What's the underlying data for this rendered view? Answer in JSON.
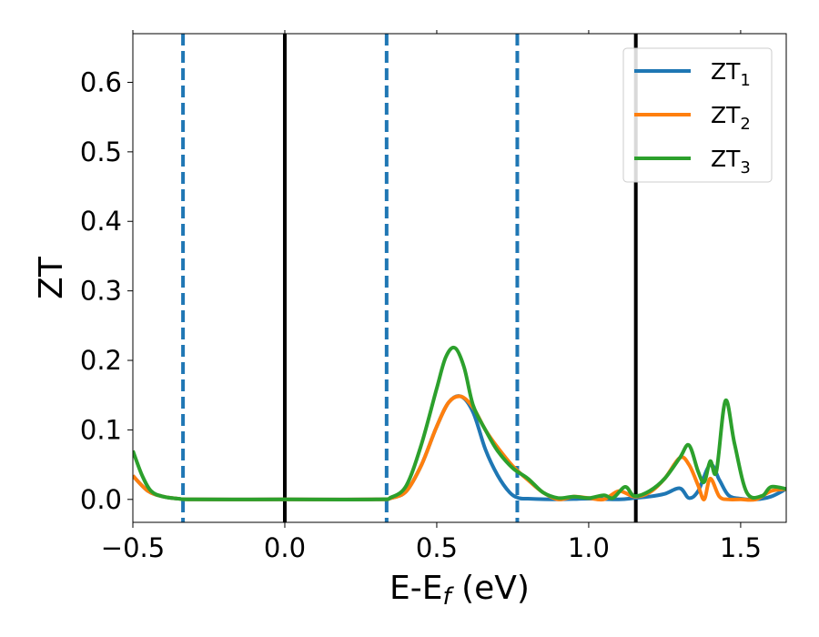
{
  "chart_data": {
    "type": "line",
    "title": "",
    "xlabel": {
      "main": "E-E",
      "sub": "f",
      "unit": " (eV)"
    },
    "ylabel": "ZT",
    "xlim": [
      -0.5,
      1.65
    ],
    "ylim": [
      -0.033,
      0.67
    ],
    "xticks": [
      {
        "value": -0.5,
        "label": "−0.5"
      },
      {
        "value": 0.0,
        "label": "0.0"
      },
      {
        "value": 0.5,
        "label": "0.5"
      },
      {
        "value": 1.0,
        "label": "1.0"
      },
      {
        "value": 1.5,
        "label": "1.5"
      }
    ],
    "yticks": [
      {
        "value": 0.0,
        "label": "0.0"
      },
      {
        "value": 0.1,
        "label": "0.1"
      },
      {
        "value": 0.2,
        "label": "0.2"
      },
      {
        "value": 0.3,
        "label": "0.3"
      },
      {
        "value": 0.4,
        "label": "0.4"
      },
      {
        "value": 0.5,
        "label": "0.5"
      },
      {
        "value": 0.6,
        "label": "0.6"
      }
    ],
    "grid": false,
    "legend_position": "top-right",
    "vlines": [
      {
        "x": -0.335,
        "color": "#1f77b4",
        "style": "dashed"
      },
      {
        "x": 0.0,
        "color": "#000000",
        "style": "solid"
      },
      {
        "x": 0.335,
        "color": "#1f77b4",
        "style": "dashed"
      },
      {
        "x": 0.765,
        "color": "#1f77b4",
        "style": "dashed"
      },
      {
        "x": 1.155,
        "color": "#000000",
        "style": "solid"
      }
    ],
    "series": [
      {
        "name": "ZT",
        "sub": "1",
        "color": "#1f77b4",
        "x": [
          -0.5,
          -0.45,
          -0.4,
          -0.35,
          -0.3,
          0.0,
          0.3,
          0.35,
          0.4,
          0.45,
          0.5,
          0.54,
          0.58,
          0.62,
          0.66,
          0.7,
          0.74,
          0.77,
          0.8,
          0.9,
          1.0,
          1.1,
          1.15,
          1.2,
          1.25,
          1.3,
          1.33,
          1.36,
          1.4,
          1.43,
          1.46,
          1.5,
          1.55,
          1.6,
          1.65
        ],
        "y": [
          0.034,
          0.012,
          0.004,
          0.001,
          0.0,
          0.0,
          0.0,
          0.002,
          0.012,
          0.05,
          0.105,
          0.14,
          0.148,
          0.125,
          0.072,
          0.035,
          0.01,
          0.002,
          0.001,
          0.0,
          0.001,
          0.0,
          0.002,
          0.004,
          0.008,
          0.016,
          0.002,
          0.012,
          0.05,
          0.028,
          0.006,
          0.001,
          0.0,
          0.004,
          0.015
        ]
      },
      {
        "name": "ZT",
        "sub": "2",
        "color": "#ff7f0e",
        "x": [
          -0.5,
          -0.45,
          -0.4,
          -0.35,
          -0.3,
          0.0,
          0.3,
          0.35,
          0.4,
          0.45,
          0.5,
          0.54,
          0.58,
          0.62,
          0.66,
          0.7,
          0.75,
          0.8,
          0.85,
          0.9,
          0.95,
          1.0,
          1.05,
          1.1,
          1.15,
          1.2,
          1.25,
          1.3,
          1.33,
          1.36,
          1.38,
          1.4,
          1.43,
          1.46,
          1.5,
          1.55,
          1.6,
          1.65
        ],
        "y": [
          0.034,
          0.012,
          0.004,
          0.001,
          0.0,
          0.0,
          0.0,
          0.002,
          0.012,
          0.05,
          0.105,
          0.14,
          0.148,
          0.132,
          0.1,
          0.075,
          0.048,
          0.028,
          0.01,
          0.0,
          0.004,
          0.002,
          0.0,
          0.012,
          0.004,
          0.01,
          0.03,
          0.06,
          0.05,
          0.02,
          0.0,
          0.03,
          0.004,
          0.0,
          0.0,
          0.0,
          0.012,
          0.015
        ]
      },
      {
        "name": "ZT",
        "sub": "3",
        "color": "#2ca02c",
        "x": [
          -0.5,
          -0.47,
          -0.44,
          -0.4,
          -0.35,
          -0.3,
          0.0,
          0.3,
          0.35,
          0.4,
          0.45,
          0.5,
          0.53,
          0.56,
          0.59,
          0.62,
          0.66,
          0.7,
          0.75,
          0.8,
          0.85,
          0.9,
          0.95,
          1.0,
          1.05,
          1.08,
          1.12,
          1.15,
          1.2,
          1.25,
          1.3,
          1.33,
          1.36,
          1.38,
          1.4,
          1.42,
          1.45,
          1.48,
          1.52,
          1.57,
          1.6,
          1.65
        ],
        "y": [
          0.07,
          0.035,
          0.012,
          0.004,
          0.001,
          0.0,
          0.0,
          0.0,
          0.003,
          0.02,
          0.08,
          0.16,
          0.205,
          0.218,
          0.19,
          0.135,
          0.1,
          0.07,
          0.045,
          0.03,
          0.01,
          0.002,
          0.004,
          0.002,
          0.006,
          0.002,
          0.018,
          0.005,
          0.012,
          0.03,
          0.06,
          0.078,
          0.04,
          0.025,
          0.055,
          0.04,
          0.142,
          0.08,
          0.01,
          0.005,
          0.018,
          0.015
        ]
      }
    ]
  }
}
